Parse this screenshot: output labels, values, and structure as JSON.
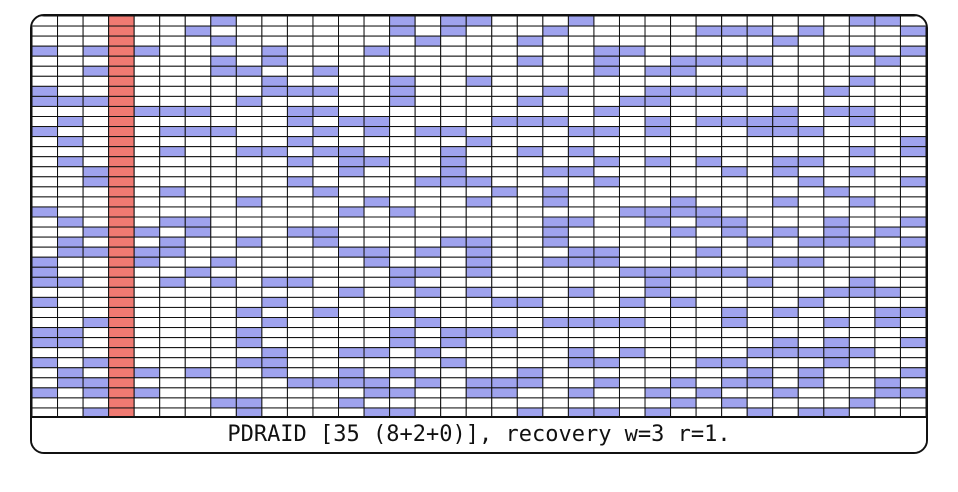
{
  "diagram": {
    "caption": "PDRAID [35 (8+2+0)], recovery w=3 r=1.",
    "columns": 35,
    "rows": 40,
    "failed_disk_index": 3,
    "colors": {
      "failed_disk": "#f07a72",
      "recovery_read": "#9fa3ee",
      "empty_cell": "#ffffff",
      "grid_line": "#111111"
    }
  }
}
